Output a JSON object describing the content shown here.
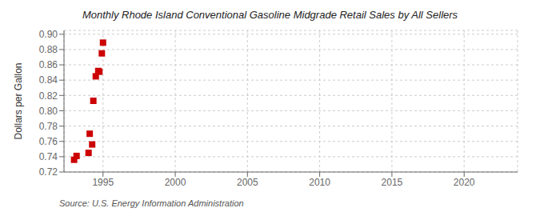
{
  "chart_data": {
    "type": "scatter",
    "title": "Monthly Rhode Island Conventional Gasoline Midgrade Retail Sales by All Sellers",
    "y_label": "Dollars per Gallon",
    "annotations": [
      "Source: U.S. Energy Information Administration"
    ],
    "x": [
      1993.0,
      1993.17,
      1994.0,
      1994.08,
      1994.25,
      1994.33,
      1994.5,
      1994.67,
      1994.75,
      1994.92,
      1995.0
    ],
    "values": [
      0.736,
      0.741,
      0.745,
      0.77,
      0.756,
      0.813,
      0.845,
      0.852,
      0.851,
      0.875,
      0.889
    ],
    "color": "#cc0000",
    "marker": "square",
    "xlim": [
      1992.3,
      2023.7
    ],
    "ylim": [
      0.72,
      0.905
    ],
    "xticks": [
      1995,
      2000,
      2005,
      2010,
      2015,
      2020
    ],
    "yticks": [
      0.72,
      0.74,
      0.76,
      0.78,
      {
        "value": 0.8,
        "label": "0.80"
      },
      0.82,
      0.84,
      0.86,
      0.88,
      {
        "value": 0.9,
        "label": "0.90"
      }
    ],
    "grid": true
  }
}
